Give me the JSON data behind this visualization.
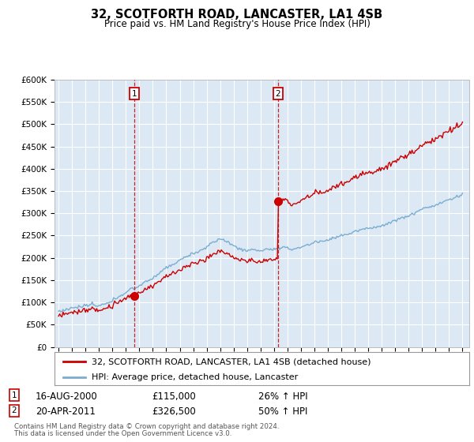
{
  "title1": "32, SCOTFORTH ROAD, LANCASTER, LA1 4SB",
  "title2": "Price paid vs. HM Land Registry's House Price Index (HPI)",
  "legend_line1": "32, SCOTFORTH ROAD, LANCASTER, LA1 4SB (detached house)",
  "legend_line2": "HPI: Average price, detached house, Lancaster",
  "footnote1": "Contains HM Land Registry data © Crown copyright and database right 2024.",
  "footnote2": "This data is licensed under the Open Government Licence v3.0.",
  "transaction1_date": "16-AUG-2000",
  "transaction1_price": "£115,000",
  "transaction1_hpi": "26% ↑ HPI",
  "transaction1_year": 2000.62,
  "transaction1_value": 115000,
  "transaction2_date": "20-APR-2011",
  "transaction2_price": "£326,500",
  "transaction2_hpi": "50% ↑ HPI",
  "transaction2_year": 2011.3,
  "transaction2_value": 326500,
  "red_line_color": "#cc0000",
  "blue_line_color": "#7aadcf",
  "plot_bg": "#dce9f5",
  "ylim": [
    0,
    600000
  ],
  "yticks": [
    0,
    50000,
    100000,
    150000,
    200000,
    250000,
    300000,
    350000,
    400000,
    450000,
    500000,
    550000,
    600000
  ],
  "ytick_labels": [
    "£0",
    "£50K",
    "£100K",
    "£150K",
    "£200K",
    "£250K",
    "£300K",
    "£350K",
    "£400K",
    "£450K",
    "£500K",
    "£550K",
    "£600K"
  ],
  "xlim_start": 1994.7,
  "xlim_end": 2025.5
}
